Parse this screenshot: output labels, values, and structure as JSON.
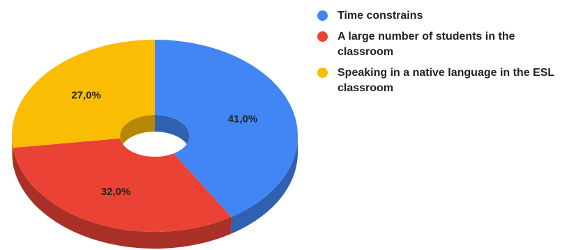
{
  "chart_data": {
    "type": "pie",
    "variant": "3d-donut",
    "categories": [
      "Time constrains",
      "A large number of students in the classroom",
      "Speaking in a native language in the ESL classroom"
    ],
    "values": [
      41.0,
      32.0,
      27.0
    ],
    "labels": [
      "41,0%",
      "32,0%",
      "27,0%"
    ],
    "colors": [
      "#4285f4",
      "#ea4335",
      "#fbbc04"
    ],
    "title": "",
    "legend_placement": "right"
  }
}
